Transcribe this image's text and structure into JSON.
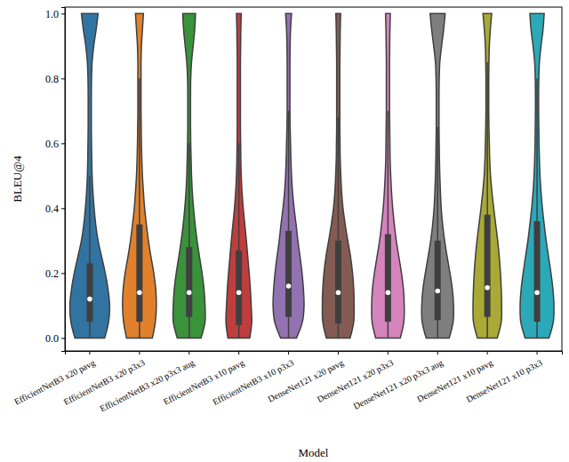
{
  "chart_data": {
    "type": "violin",
    "x_label": "Model",
    "y_label": "BLEU@4",
    "categories": [
      "EfficientNetB3 x20 pavg",
      "EfficientNetB3 x20 p3x3",
      "EfficientNetB3 x20 p3x3 aug",
      "EfficientNetB3 x10 pavg",
      "EfficientNetB3 x10 p3x3",
      "DenseNet121 x20 pavg",
      "DenseNet121 x20 p3x3",
      "DenseNet121 x20 p3x3 aug",
      "DenseNet121 x10 pavg",
      "DenseNet121 x10 p3x3"
    ],
    "colors": [
      "#3274a1",
      "#e1812c",
      "#3a923a",
      "#c03d3e",
      "#9372b2",
      "#845b53",
      "#d684bd",
      "#7f7f7f",
      "#a9aa35",
      "#2ba9b9"
    ],
    "y_grid": [
      0,
      0.05,
      0.1,
      0.15,
      0.2,
      0.25,
      0.3,
      0.35,
      0.4,
      0.45,
      0.5,
      0.55,
      0.6,
      0.65,
      0.7,
      0.75,
      0.8,
      0.85,
      0.9,
      0.95,
      1
    ],
    "density": [
      [
        0.75,
        0.95,
        1.0,
        0.92,
        0.78,
        0.6,
        0.42,
        0.3,
        0.22,
        0.16,
        0.12,
        0.1,
        0.09,
        0.08,
        0.08,
        0.08,
        0.09,
        0.12,
        0.2,
        0.32,
        0.42
      ],
      [
        0.65,
        0.8,
        0.85,
        0.82,
        0.72,
        0.58,
        0.45,
        0.35,
        0.26,
        0.2,
        0.15,
        0.12,
        0.1,
        0.09,
        0.08,
        0.08,
        0.08,
        0.08,
        0.1,
        0.15,
        0.2
      ],
      [
        0.6,
        0.8,
        0.8,
        0.75,
        0.65,
        0.52,
        0.4,
        0.3,
        0.22,
        0.16,
        0.12,
        0.1,
        0.08,
        0.07,
        0.07,
        0.07,
        0.08,
        0.12,
        0.2,
        0.28,
        0.32
      ],
      [
        0.55,
        0.65,
        0.62,
        0.58,
        0.52,
        0.45,
        0.38,
        0.3,
        0.22,
        0.16,
        0.12,
        0.1,
        0.09,
        0.08,
        0.08,
        0.08,
        0.08,
        0.08,
        0.09,
        0.1,
        0.12
      ],
      [
        0.4,
        0.7,
        0.78,
        0.75,
        0.68,
        0.58,
        0.47,
        0.38,
        0.28,
        0.2,
        0.15,
        0.12,
        0.1,
        0.08,
        0.07,
        0.07,
        0.07,
        0.07,
        0.08,
        0.1,
        0.15
      ],
      [
        0.6,
        0.78,
        0.8,
        0.78,
        0.72,
        0.62,
        0.48,
        0.35,
        0.24,
        0.17,
        0.13,
        0.1,
        0.09,
        0.08,
        0.08,
        0.08,
        0.08,
        0.08,
        0.09,
        0.1,
        0.12
      ],
      [
        0.62,
        0.8,
        0.82,
        0.78,
        0.68,
        0.55,
        0.42,
        0.32,
        0.24,
        0.18,
        0.14,
        0.11,
        0.1,
        0.09,
        0.08,
        0.08,
        0.08,
        0.08,
        0.09,
        0.1,
        0.12
      ],
      [
        0.58,
        0.78,
        0.8,
        0.74,
        0.62,
        0.48,
        0.35,
        0.25,
        0.18,
        0.14,
        0.11,
        0.09,
        0.08,
        0.07,
        0.07,
        0.07,
        0.08,
        0.11,
        0.2,
        0.3,
        0.38
      ],
      [
        0.5,
        0.7,
        0.72,
        0.7,
        0.66,
        0.6,
        0.52,
        0.42,
        0.32,
        0.23,
        0.16,
        0.12,
        0.1,
        0.08,
        0.07,
        0.07,
        0.07,
        0.08,
        0.1,
        0.15,
        0.22
      ],
      [
        0.6,
        0.82,
        0.85,
        0.8,
        0.7,
        0.58,
        0.46,
        0.36,
        0.27,
        0.2,
        0.15,
        0.12,
        0.1,
        0.09,
        0.08,
        0.08,
        0.09,
        0.12,
        0.2,
        0.3,
        0.36
      ]
    ],
    "whisker_low": [
      0,
      0,
      0,
      0,
      0,
      0,
      0,
      0,
      0,
      0
    ],
    "q1": [
      0.05,
      0.05,
      0.065,
      0.04,
      0.065,
      0.045,
      0.05,
      0.055,
      0.065,
      0.05
    ],
    "median": [
      0.12,
      0.14,
      0.14,
      0.14,
      0.16,
      0.14,
      0.14,
      0.145,
      0.155,
      0.14
    ],
    "q3": [
      0.23,
      0.35,
      0.28,
      0.27,
      0.33,
      0.3,
      0.32,
      0.3,
      0.38,
      0.36
    ],
    "whisker_high": [
      0.5,
      0.8,
      0.6,
      0.6,
      0.7,
      0.68,
      0.7,
      0.65,
      0.85,
      0.8
    ],
    "ylim": [
      -0.04,
      1.02
    ],
    "yticks": [
      {
        "value": 0,
        "label": "0.0"
      },
      0.2,
      0.4,
      0.6,
      0.8,
      {
        "value": 1,
        "label": "1.0"
      }
    ]
  }
}
